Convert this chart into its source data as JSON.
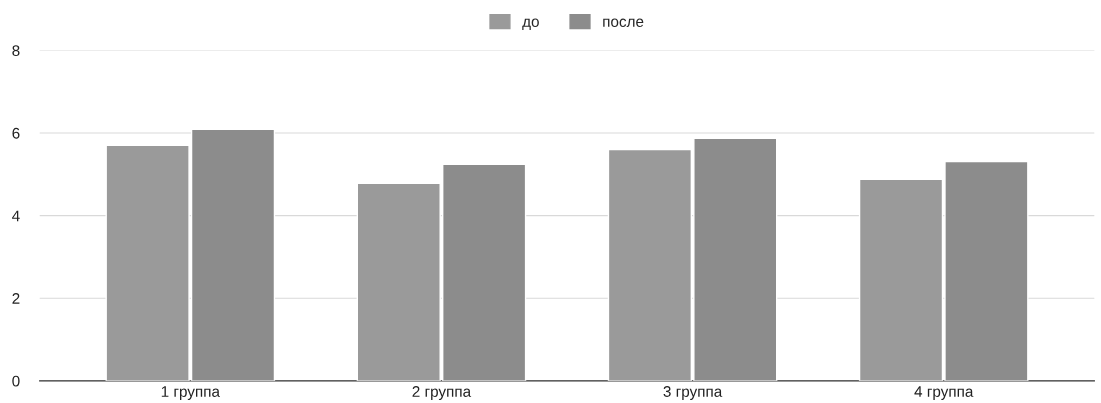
{
  "chart_data": {
    "type": "bar",
    "categories": [
      "1 группа",
      "2 группа",
      "3 группа",
      "4 группа"
    ],
    "series": [
      {
        "name": "до",
        "color": "#9a9a9a",
        "values": [
          5.7,
          4.78,
          5.6,
          4.88
        ]
      },
      {
        "name": "после",
        "color": "#8c8c8c",
        "values": [
          6.09,
          5.24,
          5.87,
          5.31
        ]
      }
    ],
    "ylim": [
      0,
      8
    ],
    "yticks": [
      0,
      2,
      4,
      6,
      8
    ],
    "grid": "y",
    "legend": "top"
  }
}
